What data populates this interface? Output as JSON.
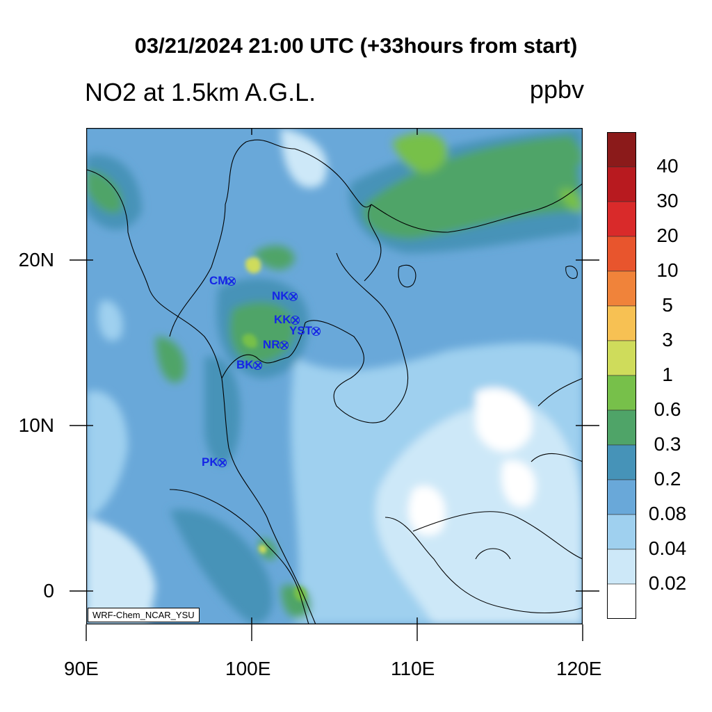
{
  "header": {
    "title": "03/21/2024 21:00 UTC (+33hours from start)",
    "subtitle": "NO2 at 1.5km A.G.L.",
    "units": "ppbv"
  },
  "credit": "WRF-Chem_NCAR_YSU",
  "map": {
    "lon_range": [
      90,
      120
    ],
    "lat_range": [
      -2,
      28
    ],
    "x_tick_labels": [
      "90E",
      "100E",
      "110E",
      "120E"
    ],
    "y_tick_labels": [
      "20N",
      "10N",
      "0"
    ],
    "land_outline_color": "#000000"
  },
  "colorbar": {
    "labels": [
      "40",
      "30",
      "20",
      "10",
      "5",
      "3",
      "1",
      "0.6",
      "0.3",
      "0.2",
      "0.08",
      "0.04",
      "0.02"
    ],
    "colors": [
      "#8b1a1a",
      "#b81a1f",
      "#d92a2a",
      "#e8552d",
      "#f0833a",
      "#f7c153",
      "#cfdc5b",
      "#77c04a",
      "#4fa468",
      "#4693b8",
      "#69a8d9",
      "#9fd0ef",
      "#cde8f8",
      "#ffffff"
    ]
  },
  "sites": [
    {
      "code": "CM",
      "lon": 98.98,
      "lat": 18.79
    },
    {
      "code": "NK",
      "lon": 102.74,
      "lat": 17.88
    },
    {
      "code": "KK",
      "lon": 102.84,
      "lat": 16.44
    },
    {
      "code": "YST",
      "lon": 104.15,
      "lat": 15.79
    },
    {
      "code": "NR",
      "lon": 102.09,
      "lat": 14.98
    },
    {
      "code": "BK",
      "lon": 100.52,
      "lat": 13.75
    },
    {
      "code": "PK",
      "lon": 98.39,
      "lat": 7.88
    }
  ]
}
